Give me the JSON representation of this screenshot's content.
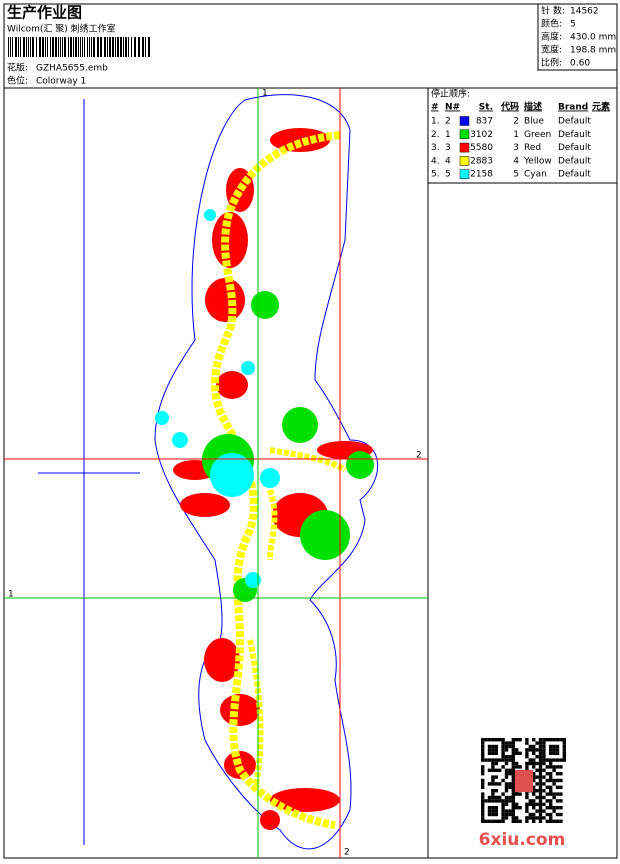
{
  "header": {
    "title": "生产作业图",
    "subtitle": "Wilcom(汇 聚) 刺绣工作室",
    "design_label": "花版:",
    "design": "GZHA5655.emb",
    "colorway_label": "色位:",
    "colorway": "Colorway 1"
  },
  "info": [
    {
      "label": "针 数:",
      "value": "14562"
    },
    {
      "label": "颜色:",
      "value": "5"
    },
    {
      "label": "高度:",
      "value": "430.0 mm"
    },
    {
      "label": "宽度:",
      "value": "198.8 mm"
    },
    {
      "label": "比例:",
      "value": "0.60"
    }
  ],
  "guides": {
    "v_green": "1",
    "h_red": "2",
    "h_green": "1",
    "v_red": "2"
  },
  "stop_sequence": {
    "title": "停止顺序:",
    "headers": [
      "#",
      "N#",
      "St.",
      "代码",
      "描述",
      "Brand",
      "元素"
    ],
    "rows": [
      {
        "index": "1.",
        "needle": "2",
        "color": "#0000ff",
        "stitches": "837",
        "code": "2",
        "desc": "Blue",
        "brand": "Default"
      },
      {
        "index": "2.",
        "needle": "1",
        "color": "#00e000",
        "stitches": "3102",
        "code": "1",
        "desc": "Green",
        "brand": "Default"
      },
      {
        "index": "3.",
        "needle": "3",
        "color": "#ff0000",
        "stitches": "5580",
        "code": "3",
        "desc": "Red",
        "brand": "Default"
      },
      {
        "index": "4.",
        "needle": "4",
        "color": "#ffff00",
        "stitches": "2883",
        "code": "4",
        "desc": "Yellow",
        "brand": "Default"
      },
      {
        "index": "5.",
        "needle": "5",
        "color": "#00ffff",
        "stitches": "2158",
        "code": "5",
        "desc": "Cyan",
        "brand": "Default"
      }
    ]
  },
  "watermark": "6xiu.com"
}
